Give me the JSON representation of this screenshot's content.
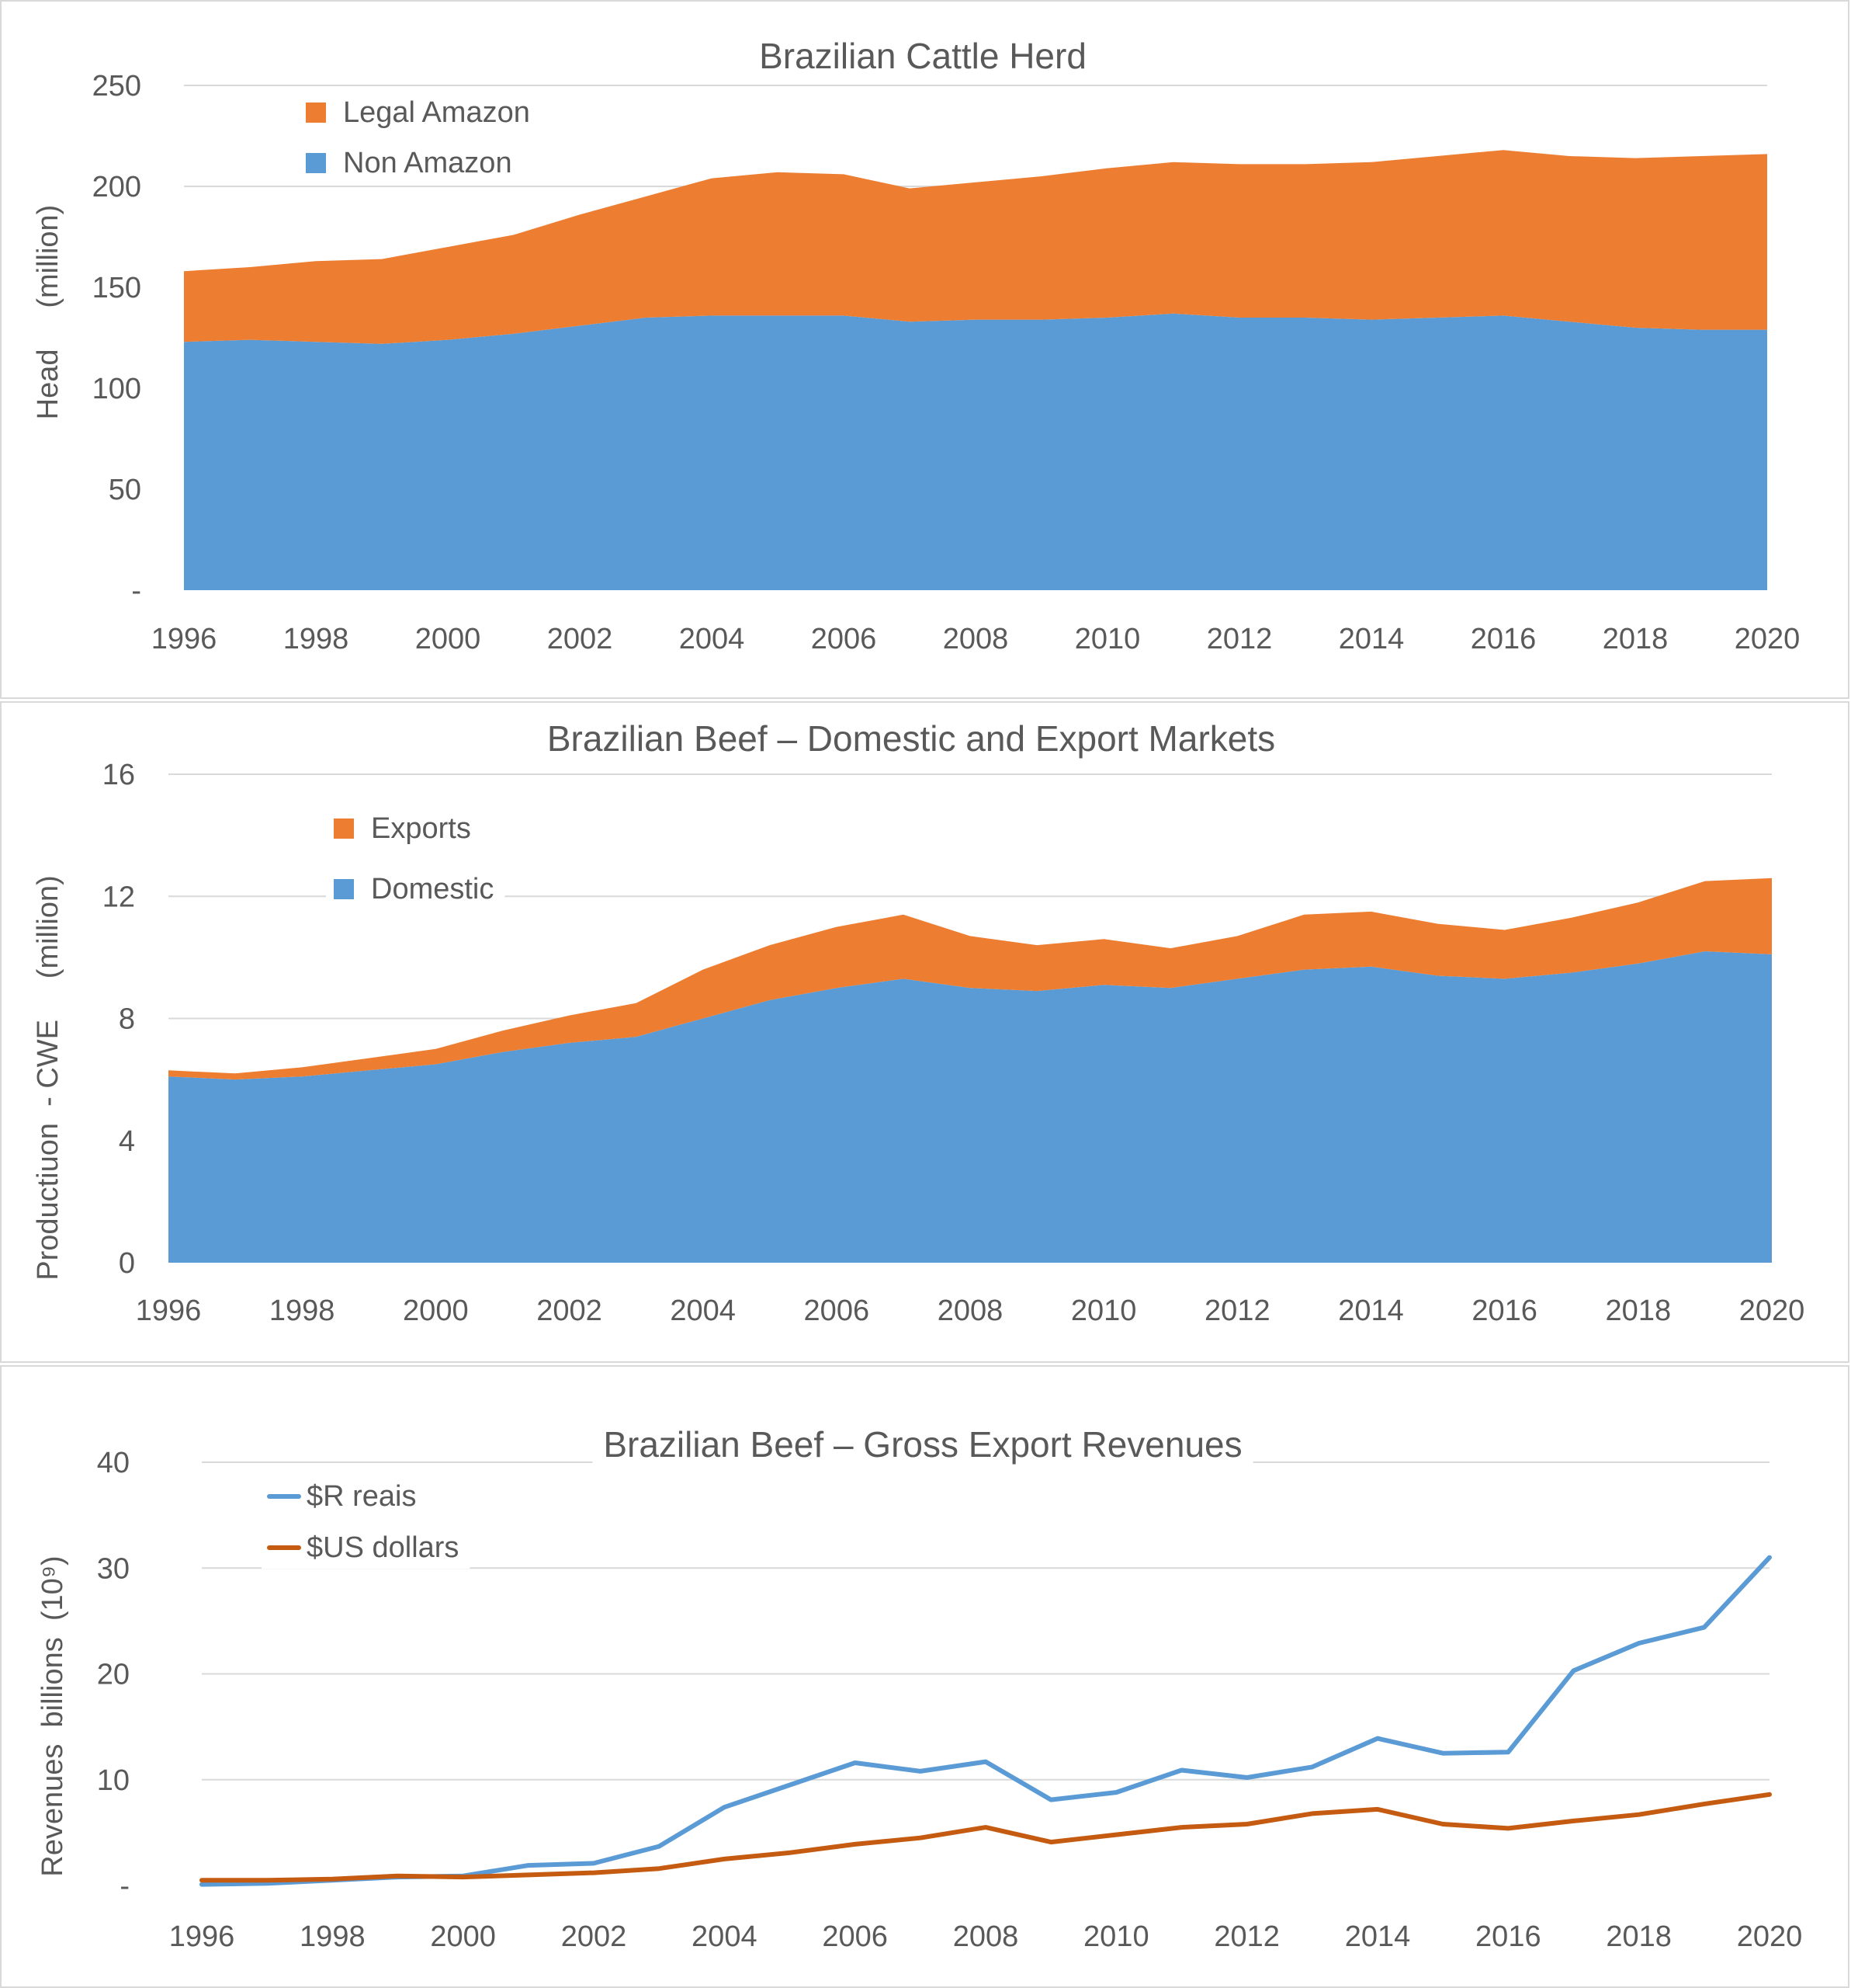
{
  "chart_data": [
    {
      "type": "area",
      "title": "Brazilian Cattle Herd",
      "ylabel": "Head     (million)",
      "ylim": [
        0,
        250
      ],
      "yticks": [
        "-",
        "50",
        "100",
        "150",
        "200",
        "250"
      ],
      "xticks": [
        "1996",
        "1998",
        "2000",
        "2002",
        "2004",
        "2006",
        "2008",
        "2010",
        "2012",
        "2014",
        "2016",
        "2018",
        "2020"
      ],
      "legend_position": "top-left",
      "grid": true,
      "x": [
        1996,
        1997,
        1998,
        1999,
        2000,
        2001,
        2002,
        2003,
        2004,
        2005,
        2006,
        2007,
        2008,
        2009,
        2010,
        2011,
        2012,
        2013,
        2014,
        2015,
        2016,
        2017,
        2018,
        2019,
        2020
      ],
      "series": [
        {
          "name": "Non Amazon",
          "color": "#5b9bd5",
          "values": [
            123,
            124,
            123,
            122,
            124,
            127,
            131,
            135,
            136,
            136,
            136,
            133,
            134,
            134,
            135,
            137,
            135,
            135,
            134,
            135,
            136,
            133,
            130,
            129,
            129
          ]
        },
        {
          "name": "Legal Amazon",
          "color": "#ed7d31",
          "values": [
            35,
            36,
            40,
            42,
            46,
            49,
            55,
            60,
            68,
            71,
            70,
            66,
            68,
            71,
            74,
            75,
            76,
            76,
            78,
            80,
            82,
            82,
            84,
            86,
            87
          ]
        }
      ]
    },
    {
      "type": "area",
      "title": "Brazilian Beef – Domestic and Export Markets",
      "ylabel": "Productiuon  - CWE     (million)",
      "ylim": [
        0,
        16
      ],
      "yticks": [
        "0",
        "4",
        "8",
        "12",
        "16"
      ],
      "xticks": [
        "1996",
        "1998",
        "2000",
        "2002",
        "2004",
        "2006",
        "2008",
        "2010",
        "2012",
        "2014",
        "2016",
        "2018",
        "2020"
      ],
      "legend_position": "top-left",
      "grid": true,
      "x": [
        1996,
        1997,
        1998,
        1999,
        2000,
        2001,
        2002,
        2003,
        2004,
        2005,
        2006,
        2007,
        2008,
        2009,
        2010,
        2011,
        2012,
        2013,
        2014,
        2015,
        2016,
        2017,
        2018,
        2019,
        2020
      ],
      "series": [
        {
          "name": "Domestic",
          "color": "#5b9bd5",
          "values": [
            6.1,
            6.0,
            6.1,
            6.3,
            6.5,
            6.9,
            7.2,
            7.4,
            8.0,
            8.6,
            9.0,
            9.3,
            9.0,
            8.9,
            9.1,
            9.0,
            9.3,
            9.6,
            9.7,
            9.4,
            9.3,
            9.5,
            9.8,
            10.2,
            10.1
          ]
        },
        {
          "name": "Exports",
          "color": "#ed7d31",
          "values": [
            0.2,
            0.2,
            0.3,
            0.4,
            0.5,
            0.7,
            0.9,
            1.1,
            1.6,
            1.8,
            2.0,
            2.1,
            1.7,
            1.5,
            1.5,
            1.3,
            1.4,
            1.8,
            1.8,
            1.7,
            1.6,
            1.8,
            2.0,
            2.3,
            2.5
          ]
        }
      ]
    },
    {
      "type": "line",
      "title": "Brazilian Beef – Gross Export Revenues",
      "ylabel": "Revenues  billions  (10⁹)",
      "ylim": [
        0,
        40
      ],
      "yticks": [
        "-",
        "10",
        "20",
        "30",
        "40"
      ],
      "xticks": [
        "1996",
        "1998",
        "2000",
        "2002",
        "2004",
        "2006",
        "2008",
        "2010",
        "2012",
        "2014",
        "2016",
        "2018",
        "2020"
      ],
      "legend_position": "top-left",
      "grid": true,
      "x": [
        1996,
        1997,
        1998,
        1999,
        2000,
        2001,
        2002,
        2003,
        2004,
        2005,
        2006,
        2007,
        2008,
        2009,
        2010,
        2011,
        2012,
        2013,
        2014,
        2015,
        2016,
        2017,
        2018,
        2019,
        2020
      ],
      "series": [
        {
          "name": "$R reais",
          "color": "#5b9bd5",
          "values": [
            0.1,
            0.2,
            0.5,
            0.8,
            0.9,
            1.9,
            2.1,
            3.7,
            7.4,
            9.5,
            11.6,
            10.8,
            11.7,
            8.1,
            8.8,
            10.9,
            10.2,
            11.2,
            13.9,
            12.5,
            12.6,
            20.3,
            22.9,
            24.4,
            31.0
          ]
        },
        {
          "name": "$US dollars",
          "color": "#c55a11",
          "values": [
            0.5,
            0.5,
            0.6,
            0.9,
            0.8,
            1.0,
            1.2,
            1.6,
            2.5,
            3.1,
            3.9,
            4.5,
            5.5,
            4.1,
            4.8,
            5.5,
            5.8,
            6.8,
            7.2,
            5.8,
            5.4,
            6.1,
            6.7,
            7.7,
            8.6
          ]
        }
      ]
    }
  ]
}
